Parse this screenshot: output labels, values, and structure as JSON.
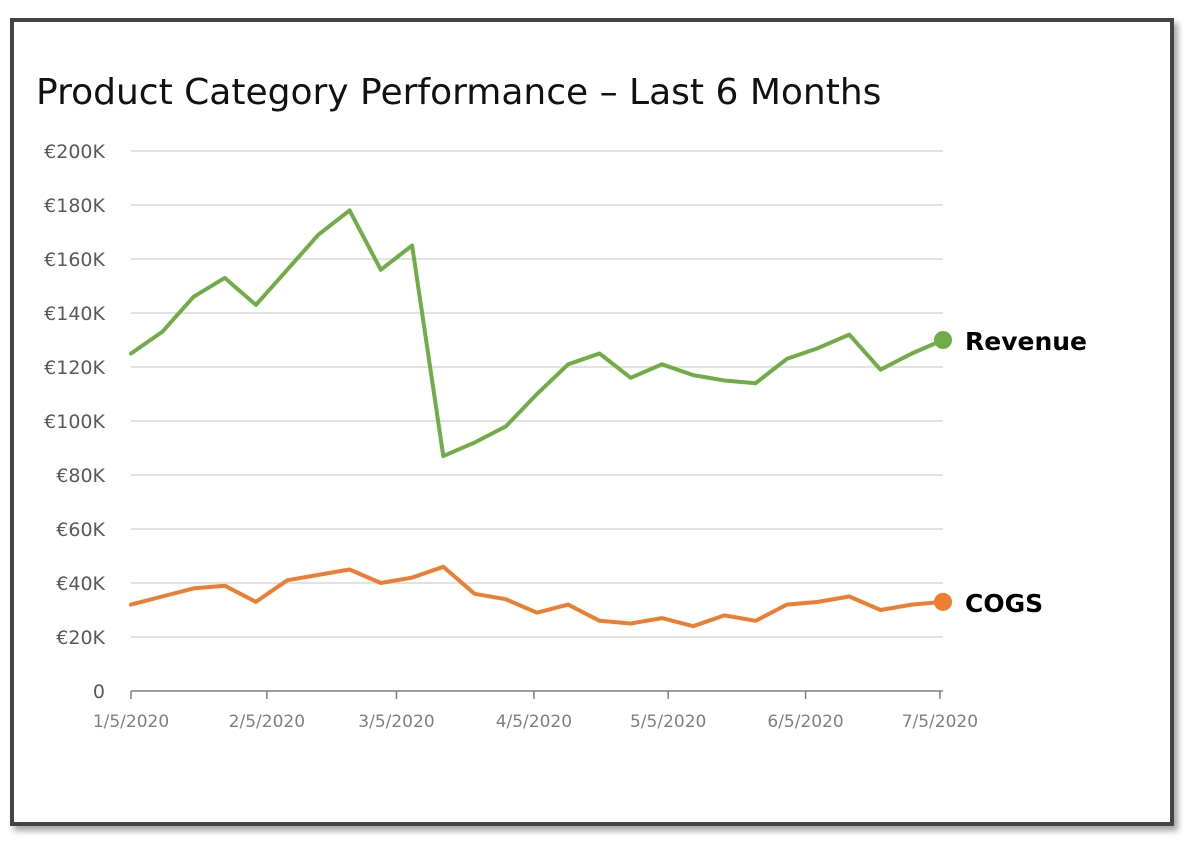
{
  "chart_data": {
    "type": "line",
    "title": "Product Category Performance – Last 6 Months",
    "xlabel": "",
    "ylabel": "",
    "ylim": [
      0,
      200000
    ],
    "y_ticks": [
      {
        "value": 0,
        "label": "0"
      },
      {
        "value": 20000,
        "label": "€20K"
      },
      {
        "value": 40000,
        "label": "€40K"
      },
      {
        "value": 60000,
        "label": "€60K"
      },
      {
        "value": 80000,
        "label": "€80K"
      },
      {
        "value": 100000,
        "label": "€100K"
      },
      {
        "value": 120000,
        "label": "€120K"
      },
      {
        "value": 140000,
        "label": "€140K"
      },
      {
        "value": 160000,
        "label": "€160K"
      },
      {
        "value": 180000,
        "label": "€180K"
      },
      {
        "value": 200000,
        "label": "€200K"
      }
    ],
    "x_ticks": [
      {
        "index": 0,
        "label": "1/5/2020"
      },
      {
        "index": 4.35,
        "label": "2/5/2020"
      },
      {
        "index": 8.5,
        "label": "3/5/2020"
      },
      {
        "index": 12.9,
        "label": "4/5/2020"
      },
      {
        "index": 17.2,
        "label": "5/5/2020"
      },
      {
        "index": 21.6,
        "label": "6/5/2020"
      },
      {
        "index": 25.9,
        "label": "7/5/2020"
      }
    ],
    "x_count": 27,
    "grid": true,
    "series": [
      {
        "name": "Revenue",
        "color": "#70ad47",
        "values": [
          125000,
          133000,
          146000,
          153000,
          143000,
          156000,
          169000,
          178000,
          156000,
          165000,
          87000,
          92000,
          98000,
          110000,
          121000,
          125000,
          116000,
          121000,
          117000,
          115000,
          114000,
          123000,
          127000,
          132000,
          119000,
          125000,
          130000
        ]
      },
      {
        "name": "COGS",
        "color": "#ed7d31",
        "values": [
          32000,
          35000,
          38000,
          39000,
          33000,
          41000,
          43000,
          45000,
          40000,
          42000,
          46000,
          36000,
          34000,
          29000,
          32000,
          26000,
          25000,
          27000,
          24000,
          28000,
          26000,
          32000,
          33000,
          35000,
          30000,
          32000,
          33000
        ]
      }
    ]
  }
}
